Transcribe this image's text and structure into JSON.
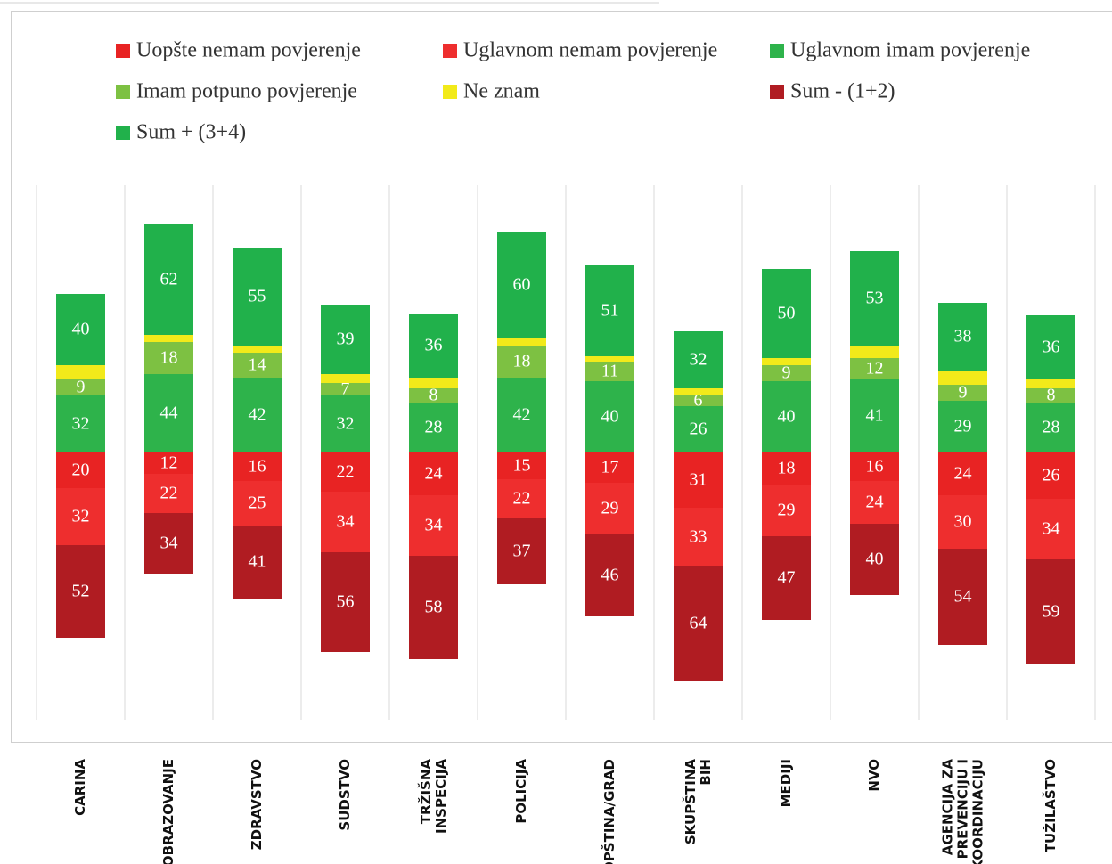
{
  "chart_data": {
    "type": "diverging-stacked-bar",
    "categories": [
      "CARINA",
      "OBRAZOVANJE",
      "ZDRAVSTVO",
      "SUDSTVO",
      "TRŽIŠNA INSPECIJA",
      "POLICIJA",
      "OPŠTINA/GRAD",
      "SKUPŠTINA BIH",
      "MEDIJI",
      "NVO",
      "AGENCIJA ZA PREVENCIJU I KOORDINACIJU",
      "TUŽILAŠTVO"
    ],
    "ylim": [
      -150,
      150
    ],
    "series": [
      {
        "name": "Uopšte nemam povjerenje",
        "color": "#e82323",
        "side": "negative",
        "values": [
          20,
          12,
          16,
          22,
          24,
          15,
          17,
          31,
          18,
          16,
          24,
          26
        ]
      },
      {
        "name": "Uglavnom nemam povjerenje",
        "color": "#ee2e2e",
        "side": "negative",
        "values": [
          32,
          22,
          25,
          34,
          34,
          22,
          29,
          33,
          29,
          24,
          30,
          34
        ]
      },
      {
        "name": "Uglavnom imam povjerenje",
        "color": "#2eb34b",
        "side": "positive",
        "values": [
          32,
          44,
          42,
          32,
          28,
          42,
          40,
          26,
          40,
          41,
          29,
          28
        ]
      },
      {
        "name": "Imam potpuno povjerenje",
        "color": "#7dc142",
        "side": "positive",
        "values": [
          9,
          18,
          14,
          7,
          8,
          18,
          11,
          6,
          9,
          12,
          9,
          8
        ]
      },
      {
        "name": "Ne znam",
        "color": "#f2ea1a",
        "side": "positive",
        "data_labels": false,
        "values": [
          8,
          4,
          4,
          5,
          6,
          4,
          3,
          4,
          4,
          7,
          8,
          5
        ]
      },
      {
        "name": "Sum - (1+2)",
        "color": "#b01c22",
        "side": "negative",
        "values": [
          52,
          34,
          41,
          56,
          58,
          37,
          46,
          64,
          47,
          40,
          54,
          59
        ]
      },
      {
        "name": "Sum + (3+4)",
        "color": "#21b14b",
        "side": "positive",
        "values": [
          40,
          62,
          55,
          39,
          36,
          60,
          51,
          32,
          50,
          53,
          38,
          36
        ]
      }
    ]
  }
}
